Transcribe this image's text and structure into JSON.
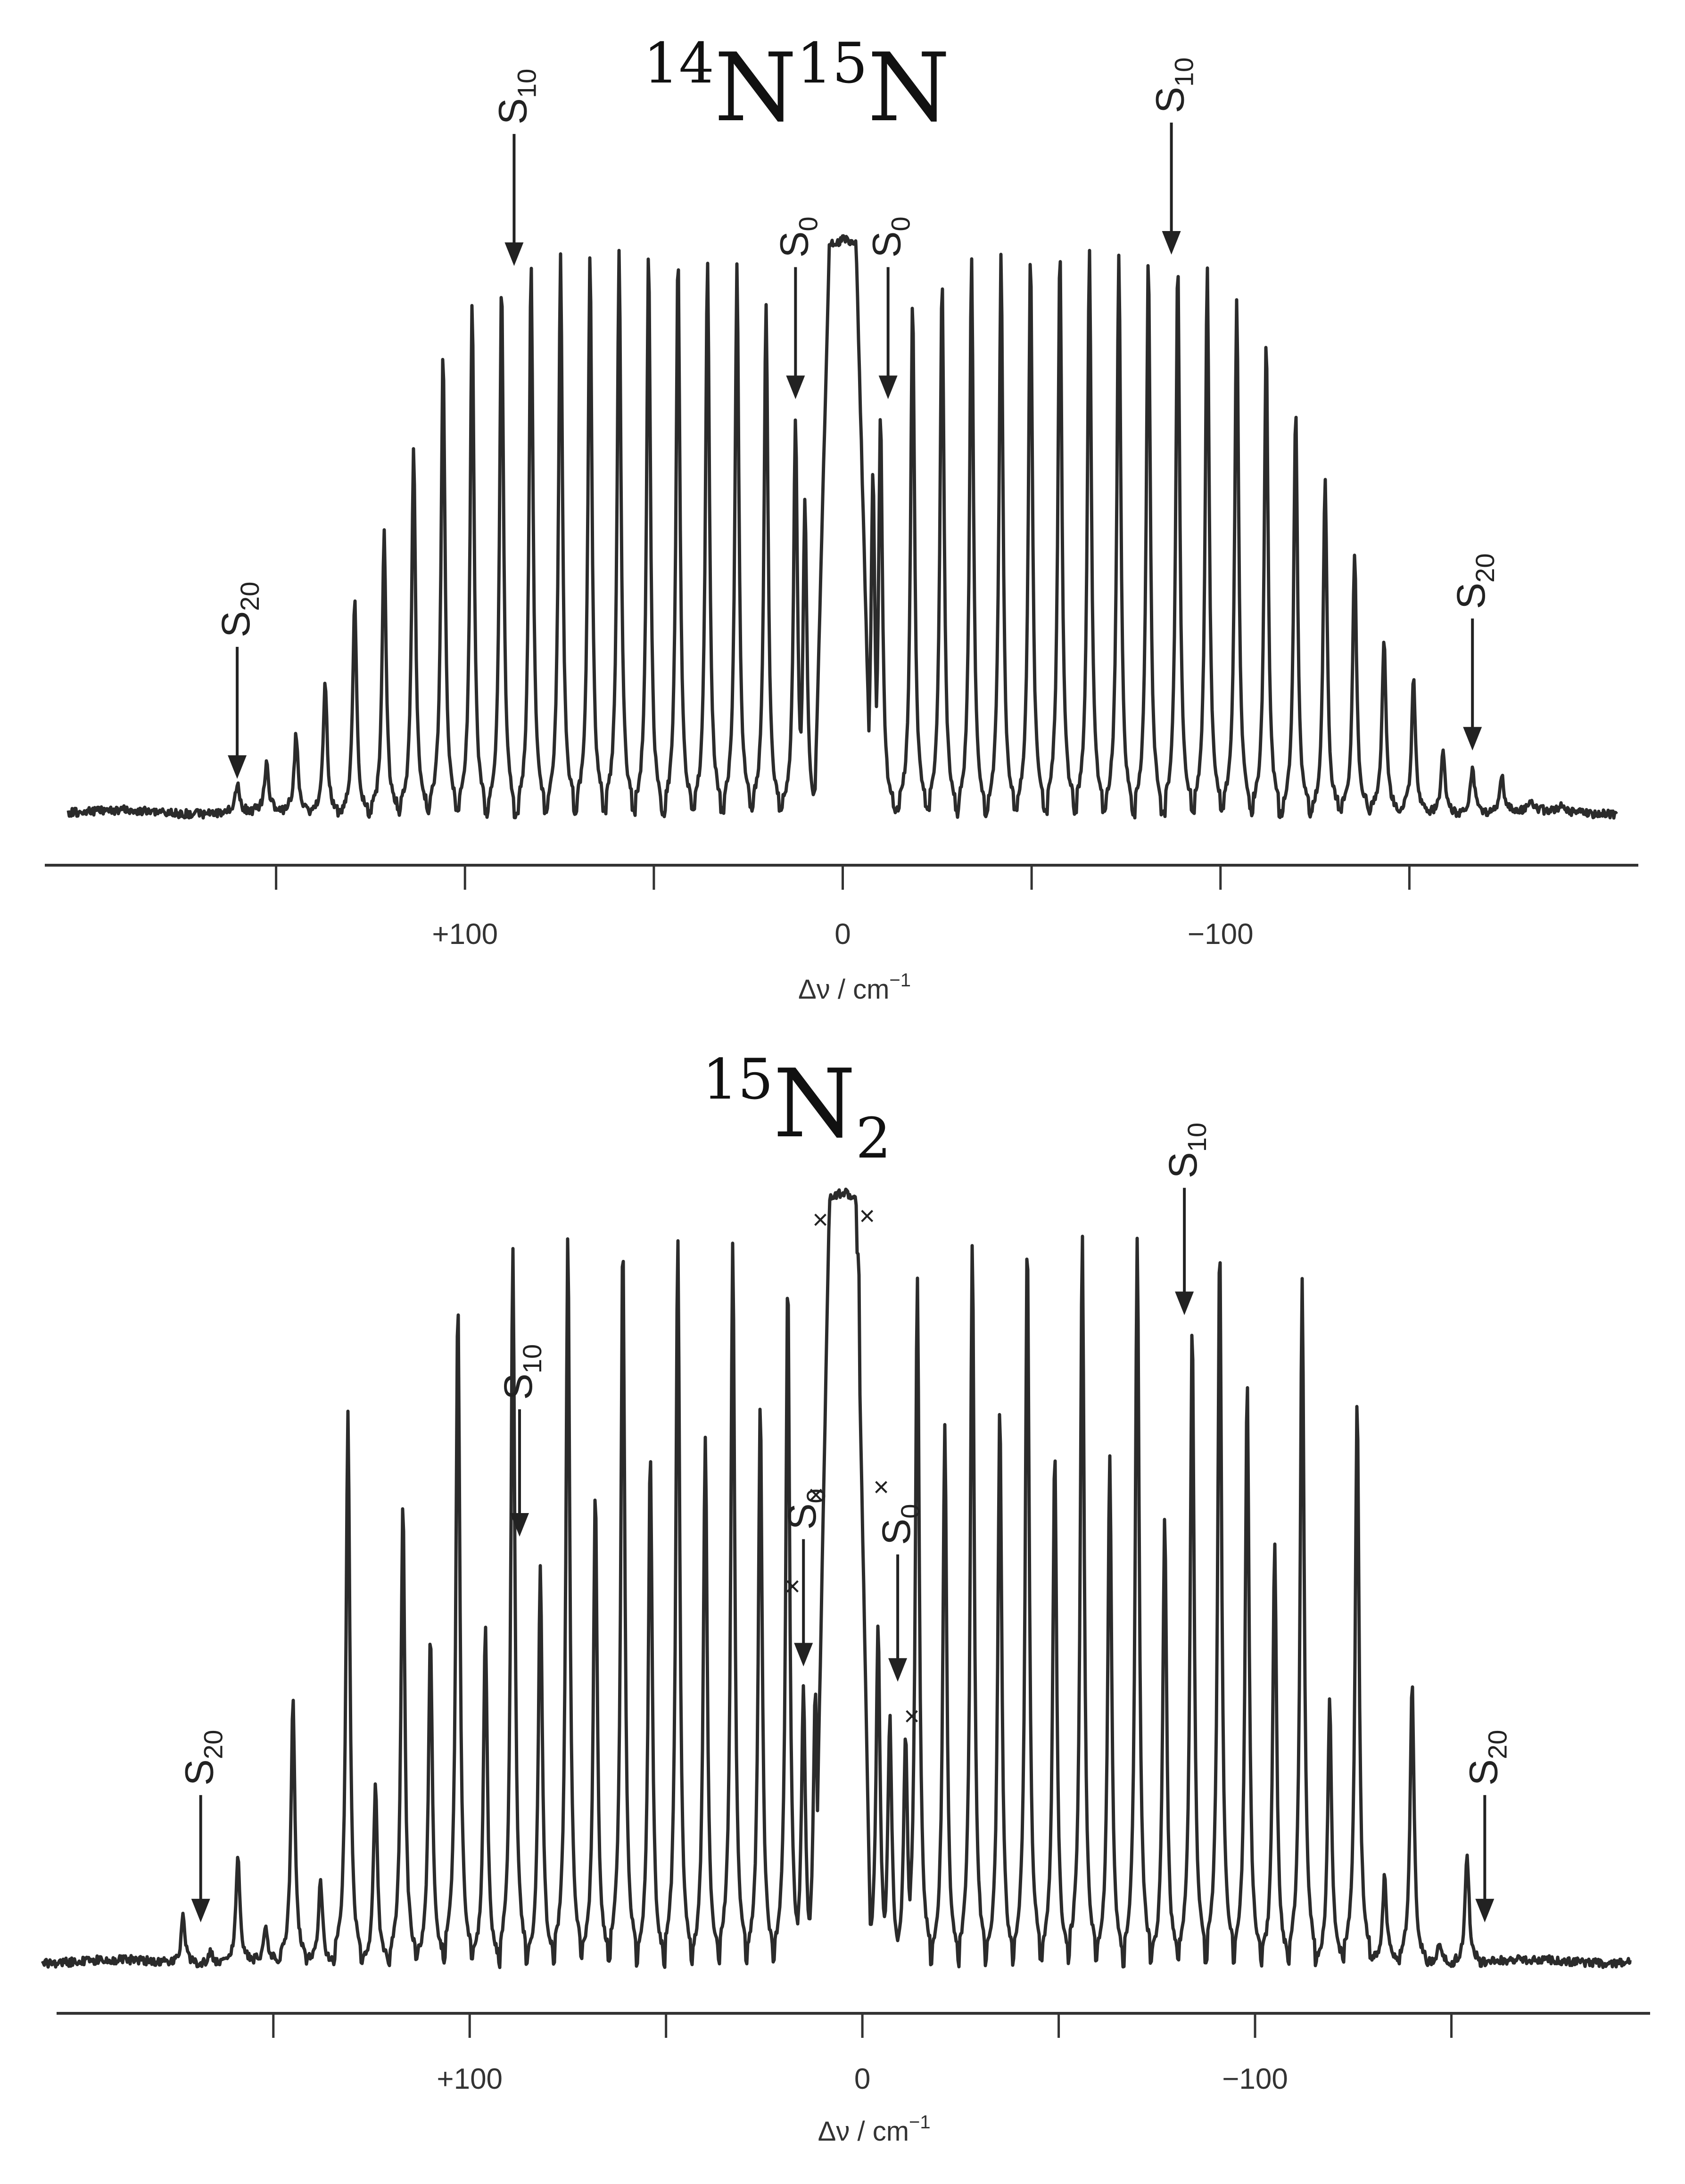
{
  "chart_data": [
    {
      "type": "line",
      "title": "¹⁴N¹⁵N",
      "title_parts": {
        "sup1": "14",
        "el1": "N",
        "sup2": "15",
        "el2": "N"
      },
      "xlabel": "Δν / cm⁻¹",
      "xlabel_parts": {
        "main": "Δν / cm",
        "sup": "−1"
      },
      "x_direction": "reversed",
      "xlim": [
        200,
        -200
      ],
      "ylim": [
        0,
        1
      ],
      "grid": false,
      "x_tick_positions": [
        150,
        100,
        50,
        0,
        -50,
        -100,
        -150
      ],
      "x_tick_labels": [
        {
          "value": 100,
          "label": "+100"
        },
        {
          "value": 0,
          "label": "0"
        },
        {
          "value": -100,
          "label": "−100"
        }
      ],
      "rayleigh": {
        "x": 0,
        "height": 1.0
      },
      "series": [
        {
          "lines": [
            {
              "x": 160.3,
              "h": 0.05
            },
            {
              "x": 152.5,
              "h": 0.085
            },
            {
              "x": 144.7,
              "h": 0.135
            },
            {
              "x": 137.0,
              "h": 0.23
            },
            {
              "x": 129.2,
              "h": 0.38
            },
            {
              "x": 121.4,
              "h": 0.495
            },
            {
              "x": 113.6,
              "h": 0.64
            },
            {
              "x": 105.8,
              "h": 0.81
            },
            {
              "x": 98.1,
              "h": 0.895
            },
            {
              "x": 90.3,
              "h": 0.94
            },
            {
              "x": 82.5,
              "h": 0.975
            },
            {
              "x": 74.7,
              "h": 0.98
            },
            {
              "x": 66.9,
              "h": 0.985
            },
            {
              "x": 59.2,
              "h": 0.99
            },
            {
              "x": 51.4,
              "h": 0.99
            },
            {
              "x": 43.6,
              "h": 0.985
            },
            {
              "x": 35.8,
              "h": 0.98
            },
            {
              "x": 28.0,
              "h": 0.96
            },
            {
              "x": 20.3,
              "h": 0.9
            },
            {
              "x": 12.5,
              "h": 0.7
            },
            {
              "x": 10.0,
              "h": 0.55
            },
            {
              "x": -8.0,
              "h": 0.6
            },
            {
              "x": -10.0,
              "h": 0.7
            },
            {
              "x": -18.5,
              "h": 0.9
            },
            {
              "x": -26.3,
              "h": 0.95
            },
            {
              "x": -34.1,
              "h": 0.975
            },
            {
              "x": -41.9,
              "h": 0.985
            },
            {
              "x": -49.7,
              "h": 0.99
            },
            {
              "x": -57.5,
              "h": 0.99
            },
            {
              "x": -65.3,
              "h": 0.99
            },
            {
              "x": -73.1,
              "h": 0.99
            },
            {
              "x": -80.9,
              "h": 0.985
            },
            {
              "x": -88.7,
              "h": 0.975
            },
            {
              "x": -96.5,
              "h": 0.955
            },
            {
              "x": -104.3,
              "h": 0.9
            },
            {
              "x": -112.1,
              "h": 0.83
            },
            {
              "x": -119.9,
              "h": 0.715
            },
            {
              "x": -127.7,
              "h": 0.595
            },
            {
              "x": -135.5,
              "h": 0.455
            },
            {
              "x": -143.3,
              "h": 0.305
            },
            {
              "x": -151.1,
              "h": 0.235
            },
            {
              "x": -158.9,
              "h": 0.115
            },
            {
              "x": -166.7,
              "h": 0.085
            },
            {
              "x": -174.5,
              "h": 0.06
            },
            {
              "x": -182.3,
              "h": 0.02
            },
            {
              "x": -190.1,
              "h": 0.015
            }
          ]
        }
      ],
      "annotations": [
        {
          "label": "S",
          "sub": "20",
          "x": 160.3,
          "peak_height": 0.05
        },
        {
          "label": "S",
          "sub": "10",
          "x": 87.0,
          "peak_height": 0.955
        },
        {
          "label": "S",
          "sub": "0",
          "x": 12.5,
          "peak_height": 0.72
        },
        {
          "label": "S",
          "sub": "0",
          "x": -12.0,
          "peak_height": 0.72
        },
        {
          "label": "S",
          "sub": "10",
          "x": -87.0,
          "peak_height": 0.975
        },
        {
          "label": "S",
          "sub": "20",
          "x": -166.7,
          "peak_height": 0.1
        }
      ]
    },
    {
      "type": "line",
      "title": "¹⁵N₂",
      "title_parts": {
        "sup1": "15",
        "el1": "N",
        "sub1": "2"
      },
      "xlabel": "Δν / cm⁻¹",
      "xlabel_parts": {
        "main": "Δν / cm",
        "sup": "−1"
      },
      "x_direction": "reversed",
      "xlim": [
        204,
        -191
      ],
      "ylim": [
        0,
        1
      ],
      "grid": false,
      "x_tick_positions": [
        150,
        100,
        50,
        0,
        -50,
        -100,
        -150
      ],
      "x_tick_labels": [
        {
          "value": 100,
          "label": "+100"
        },
        {
          "value": 0,
          "label": "0"
        },
        {
          "value": -100,
          "label": "−100"
        }
      ],
      "rayleigh": {
        "x": 5,
        "height": 1.0
      },
      "series": [
        {
          "lines": [
            {
              "x": 173,
              "h": 0.06
            },
            {
              "x": 166,
              "h": 0.015
            },
            {
              "x": 159,
              "h": 0.14
            },
            {
              "x": 152,
              "h": 0.04
            },
            {
              "x": 145,
              "h": 0.34
            },
            {
              "x": 138,
              "h": 0.11
            },
            {
              "x": 131,
              "h": 0.72
            },
            {
              "x": 124,
              "h": 0.235
            },
            {
              "x": 117,
              "h": 0.6
            },
            {
              "x": 110,
              "h": 0.425
            },
            {
              "x": 103,
              "h": 0.87
            },
            {
              "x": 96,
              "h": 0.44
            },
            {
              "x": 89,
              "h": 0.94
            },
            {
              "x": 82,
              "h": 0.52
            },
            {
              "x": 75,
              "h": 0.95
            },
            {
              "x": 68,
              "h": 0.61
            },
            {
              "x": 61,
              "h": 0.95
            },
            {
              "x": 54,
              "h": 0.67
            },
            {
              "x": 47,
              "h": 0.955
            },
            {
              "x": 40,
              "h": 0.69
            },
            {
              "x": 33,
              "h": 0.94
            },
            {
              "x": 26,
              "h": 0.73
            },
            {
              "x": 19,
              "h": 0.9
            },
            {
              "x": 15,
              "h": 0.36
            },
            {
              "x": 12,
              "h": 0.36
            },
            {
              "x": 9,
              "h": 0.78
            },
            {
              "x": 1,
              "h": 0.95
            },
            {
              "x": -4,
              "h": 0.44
            },
            {
              "x": -7,
              "h": 0.32
            },
            {
              "x": -11,
              "h": 0.3
            },
            {
              "x": -14,
              "h": 0.9
            },
            {
              "x": -21,
              "h": 0.7
            },
            {
              "x": -28,
              "h": 0.945
            },
            {
              "x": -35,
              "h": 0.73
            },
            {
              "x": -42,
              "h": 0.95
            },
            {
              "x": -49,
              "h": 0.67
            },
            {
              "x": -56,
              "h": 0.95
            },
            {
              "x": -63,
              "h": 0.66
            },
            {
              "x": -70,
              "h": 0.95
            },
            {
              "x": -77,
              "h": 0.58
            },
            {
              "x": -84,
              "h": 0.835
            },
            {
              "x": -91,
              "h": 0.94
            },
            {
              "x": -98,
              "h": 0.76
            },
            {
              "x": -105,
              "h": 0.55
            },
            {
              "x": -112,
              "h": 0.9
            },
            {
              "x": -119,
              "h": 0.34
            },
            {
              "x": -126,
              "h": 0.73
            },
            {
              "x": -133,
              "h": 0.11
            },
            {
              "x": -140,
              "h": 0.37
            },
            {
              "x": -147,
              "h": 0.03
            },
            {
              "x": -154,
              "h": 0.145
            }
          ]
        }
      ],
      "annotations": [
        {
          "label": "S",
          "sub": "20",
          "x": 168.5,
          "peak_height": 0.045
        },
        {
          "label": "S",
          "sub": "10",
          "x": 87.3,
          "peak_height": 0.55
        },
        {
          "label": "S",
          "sub": "0",
          "x": 15.0,
          "peak_height": 0.38
        },
        {
          "label": "S",
          "sub": "0",
          "x": -9.0,
          "peak_height": 0.36
        },
        {
          "label": "S",
          "sub": "10",
          "x": -82.0,
          "peak_height": 0.84
        },
        {
          "label": "S",
          "sub": "20",
          "x": -158.5,
          "peak_height": 0.045
        }
      ],
      "markers": [
        {
          "symbol": "×",
          "x": 10.7,
          "height": 0.97
        },
        {
          "symbol": "×",
          "x": -1.2,
          "height": 0.975
        },
        {
          "symbol": "×",
          "x": 11.8,
          "height": 0.61
        },
        {
          "symbol": "×",
          "x": -4.8,
          "height": 0.62
        },
        {
          "symbol": "×",
          "x": 17.8,
          "height": 0.49
        },
        {
          "symbol": "×",
          "x": -12.6,
          "height": 0.32
        }
      ]
    }
  ]
}
